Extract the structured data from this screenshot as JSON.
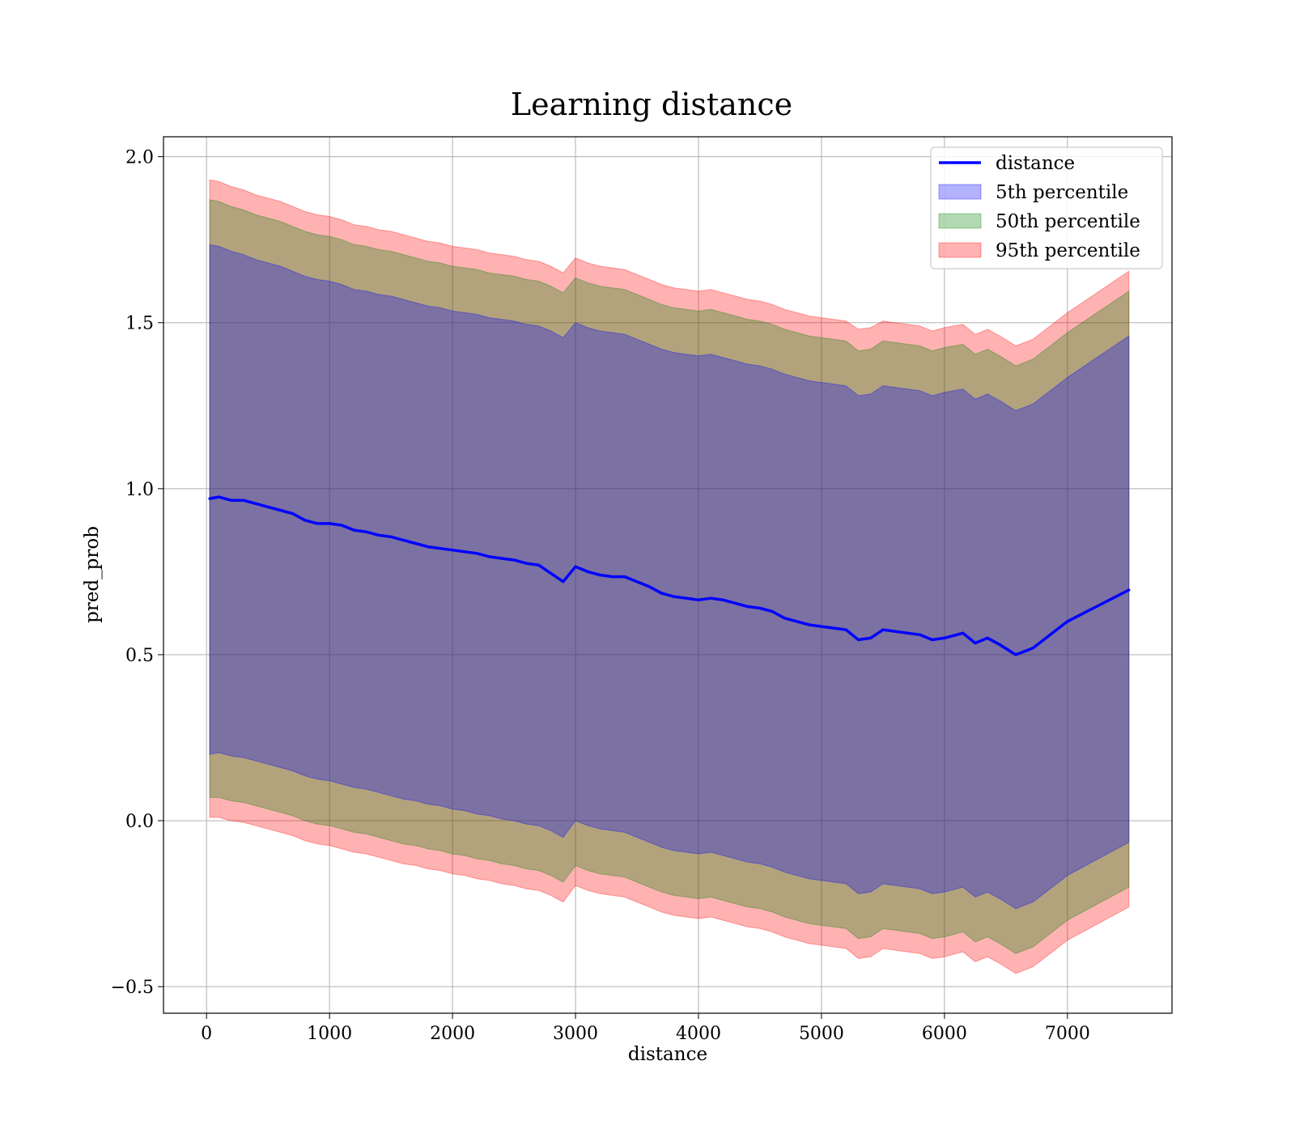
{
  "chart_data": {
    "type": "area",
    "title": "Learning distance",
    "xlabel": "distance",
    "ylabel": "pred_prob",
    "xlim": [
      -350,
      7850
    ],
    "ylim": [
      -0.58,
      2.06
    ],
    "xticks": [
      0,
      1000,
      2000,
      3000,
      4000,
      5000,
      6000,
      7000
    ],
    "yticks": [
      -0.5,
      0.0,
      0.5,
      1.0,
      1.5,
      2.0
    ],
    "xtick_labels": [
      "0",
      "1000",
      "2000",
      "3000",
      "4000",
      "5000",
      "6000",
      "7000"
    ],
    "ytick_labels": [
      "−0.5",
      "0.0",
      "0.5",
      "1.0",
      "1.5",
      "2.0"
    ],
    "grid": true,
    "legend_position": "top-right",
    "legend": [
      {
        "label": "distance",
        "kind": "line",
        "color": "#0000ff"
      },
      {
        "label": "5th percentile",
        "kind": "patch",
        "color": "#0000ff"
      },
      {
        "label": "50th percentile",
        "kind": "patch",
        "color": "#008000"
      },
      {
        "label": "95th percentile",
        "kind": "patch",
        "color": "#ff0000"
      }
    ],
    "x": [
      25,
      100,
      200,
      300,
      400,
      500,
      600,
      700,
      800,
      900,
      1000,
      1100,
      1200,
      1300,
      1400,
      1500,
      1600,
      1700,
      1800,
      1900,
      2000,
      2100,
      2200,
      2300,
      2400,
      2500,
      2600,
      2700,
      2800,
      2900,
      3000,
      3100,
      3200,
      3300,
      3400,
      3500,
      3600,
      3700,
      3800,
      3900,
      4000,
      4100,
      4200,
      4300,
      4400,
      4500,
      4600,
      4700,
      4800,
      4900,
      5000,
      5100,
      5200,
      5300,
      5400,
      5500,
      5600,
      5700,
      5800,
      5900,
      6000,
      6150,
      6250,
      6350,
      6450,
      6580,
      6720,
      7000,
      7500
    ],
    "series": [
      {
        "name": "distance",
        "color": "#0000ff",
        "values": [
          0.97,
          0.975,
          0.965,
          0.965,
          0.955,
          0.945,
          0.935,
          0.925,
          0.905,
          0.895,
          0.895,
          0.89,
          0.875,
          0.87,
          0.86,
          0.855,
          0.845,
          0.835,
          0.825,
          0.82,
          0.815,
          0.81,
          0.805,
          0.795,
          0.79,
          0.785,
          0.775,
          0.77,
          0.745,
          0.72,
          0.765,
          0.75,
          0.74,
          0.735,
          0.735,
          0.72,
          0.705,
          0.685,
          0.675,
          0.67,
          0.665,
          0.67,
          0.665,
          0.655,
          0.645,
          0.64,
          0.63,
          0.61,
          0.6,
          0.59,
          0.585,
          0.58,
          0.575,
          0.545,
          0.55,
          0.575,
          0.57,
          0.565,
          0.56,
          0.545,
          0.55,
          0.565,
          0.535,
          0.55,
          0.53,
          0.5,
          0.52,
          0.6,
          0.695
        ]
      }
    ],
    "bands": [
      {
        "name": "5th percentile",
        "color": "#0000ff",
        "opacity": 0.3,
        "upper": [
          1.735,
          1.73,
          1.715,
          1.705,
          1.69,
          1.68,
          1.67,
          1.655,
          1.64,
          1.63,
          1.625,
          1.615,
          1.6,
          1.595,
          1.585,
          1.58,
          1.57,
          1.56,
          1.55,
          1.545,
          1.535,
          1.53,
          1.525,
          1.515,
          1.51,
          1.505,
          1.495,
          1.49,
          1.475,
          1.455,
          1.5,
          1.485,
          1.475,
          1.47,
          1.465,
          1.45,
          1.435,
          1.42,
          1.41,
          1.405,
          1.4,
          1.405,
          1.395,
          1.385,
          1.375,
          1.37,
          1.36,
          1.345,
          1.335,
          1.325,
          1.32,
          1.315,
          1.31,
          1.28,
          1.285,
          1.31,
          1.305,
          1.3,
          1.295,
          1.28,
          1.29,
          1.3,
          1.27,
          1.285,
          1.265,
          1.235,
          1.255,
          1.335,
          1.46
        ],
        "lower": [
          0.2,
          0.205,
          0.195,
          0.19,
          0.18,
          0.17,
          0.16,
          0.15,
          0.135,
          0.125,
          0.12,
          0.11,
          0.1,
          0.095,
          0.085,
          0.075,
          0.065,
          0.06,
          0.05,
          0.045,
          0.035,
          0.03,
          0.02,
          0.015,
          0.005,
          0.0,
          -0.01,
          -0.015,
          -0.03,
          -0.05,
          0.0,
          -0.015,
          -0.025,
          -0.03,
          -0.035,
          -0.05,
          -0.065,
          -0.08,
          -0.09,
          -0.095,
          -0.1,
          -0.095,
          -0.105,
          -0.115,
          -0.125,
          -0.13,
          -0.14,
          -0.155,
          -0.165,
          -0.175,
          -0.18,
          -0.185,
          -0.19,
          -0.22,
          -0.215,
          -0.19,
          -0.195,
          -0.2,
          -0.205,
          -0.22,
          -0.215,
          -0.2,
          -0.23,
          -0.215,
          -0.235,
          -0.265,
          -0.245,
          -0.165,
          -0.065
        ]
      },
      {
        "name": "50th percentile",
        "color": "#008000",
        "opacity": 0.3,
        "upper": [
          1.87,
          1.865,
          1.85,
          1.84,
          1.825,
          1.815,
          1.805,
          1.79,
          1.775,
          1.765,
          1.76,
          1.75,
          1.735,
          1.73,
          1.72,
          1.715,
          1.705,
          1.695,
          1.685,
          1.68,
          1.67,
          1.665,
          1.66,
          1.65,
          1.645,
          1.64,
          1.63,
          1.625,
          1.61,
          1.59,
          1.635,
          1.62,
          1.61,
          1.605,
          1.6,
          1.585,
          1.57,
          1.555,
          1.545,
          1.54,
          1.535,
          1.54,
          1.53,
          1.52,
          1.51,
          1.505,
          1.495,
          1.48,
          1.47,
          1.46,
          1.455,
          1.45,
          1.445,
          1.415,
          1.42,
          1.445,
          1.44,
          1.435,
          1.43,
          1.415,
          1.425,
          1.435,
          1.405,
          1.42,
          1.4,
          1.37,
          1.39,
          1.47,
          1.595
        ],
        "lower": [
          0.07,
          0.07,
          0.06,
          0.055,
          0.045,
          0.035,
          0.025,
          0.015,
          0.0,
          -0.01,
          -0.015,
          -0.025,
          -0.035,
          -0.04,
          -0.05,
          -0.06,
          -0.07,
          -0.075,
          -0.085,
          -0.09,
          -0.1,
          -0.105,
          -0.115,
          -0.12,
          -0.13,
          -0.135,
          -0.145,
          -0.15,
          -0.165,
          -0.185,
          -0.135,
          -0.15,
          -0.16,
          -0.165,
          -0.17,
          -0.185,
          -0.2,
          -0.215,
          -0.225,
          -0.23,
          -0.235,
          -0.23,
          -0.24,
          -0.25,
          -0.26,
          -0.265,
          -0.275,
          -0.29,
          -0.3,
          -0.31,
          -0.315,
          -0.32,
          -0.325,
          -0.355,
          -0.35,
          -0.325,
          -0.33,
          -0.335,
          -0.34,
          -0.355,
          -0.35,
          -0.335,
          -0.365,
          -0.35,
          -0.37,
          -0.4,
          -0.38,
          -0.3,
          -0.2
        ]
      },
      {
        "name": "95th percentile",
        "color": "#ff0000",
        "opacity": 0.3,
        "upper": [
          1.93,
          1.925,
          1.91,
          1.9,
          1.885,
          1.875,
          1.865,
          1.85,
          1.835,
          1.825,
          1.82,
          1.81,
          1.795,
          1.79,
          1.78,
          1.775,
          1.765,
          1.755,
          1.745,
          1.74,
          1.73,
          1.725,
          1.72,
          1.71,
          1.705,
          1.7,
          1.69,
          1.685,
          1.67,
          1.65,
          1.695,
          1.68,
          1.67,
          1.665,
          1.66,
          1.645,
          1.63,
          1.615,
          1.605,
          1.6,
          1.595,
          1.6,
          1.59,
          1.58,
          1.57,
          1.565,
          1.555,
          1.54,
          1.53,
          1.52,
          1.515,
          1.51,
          1.505,
          1.48,
          1.485,
          1.505,
          1.5,
          1.495,
          1.49,
          1.475,
          1.485,
          1.495,
          1.465,
          1.48,
          1.46,
          1.43,
          1.45,
          1.53,
          1.655
        ],
        "lower": [
          0.01,
          0.01,
          0.0,
          -0.005,
          -0.015,
          -0.025,
          -0.035,
          -0.045,
          -0.06,
          -0.07,
          -0.075,
          -0.085,
          -0.095,
          -0.1,
          -0.11,
          -0.12,
          -0.13,
          -0.135,
          -0.145,
          -0.15,
          -0.16,
          -0.165,
          -0.175,
          -0.18,
          -0.19,
          -0.195,
          -0.205,
          -0.21,
          -0.225,
          -0.245,
          -0.195,
          -0.21,
          -0.22,
          -0.225,
          -0.23,
          -0.245,
          -0.26,
          -0.275,
          -0.285,
          -0.29,
          -0.295,
          -0.29,
          -0.3,
          -0.31,
          -0.32,
          -0.325,
          -0.335,
          -0.35,
          -0.36,
          -0.37,
          -0.375,
          -0.38,
          -0.385,
          -0.415,
          -0.41,
          -0.385,
          -0.39,
          -0.395,
          -0.4,
          -0.415,
          -0.41,
          -0.395,
          -0.425,
          -0.41,
          -0.43,
          -0.46,
          -0.44,
          -0.36,
          -0.26
        ]
      }
    ]
  }
}
